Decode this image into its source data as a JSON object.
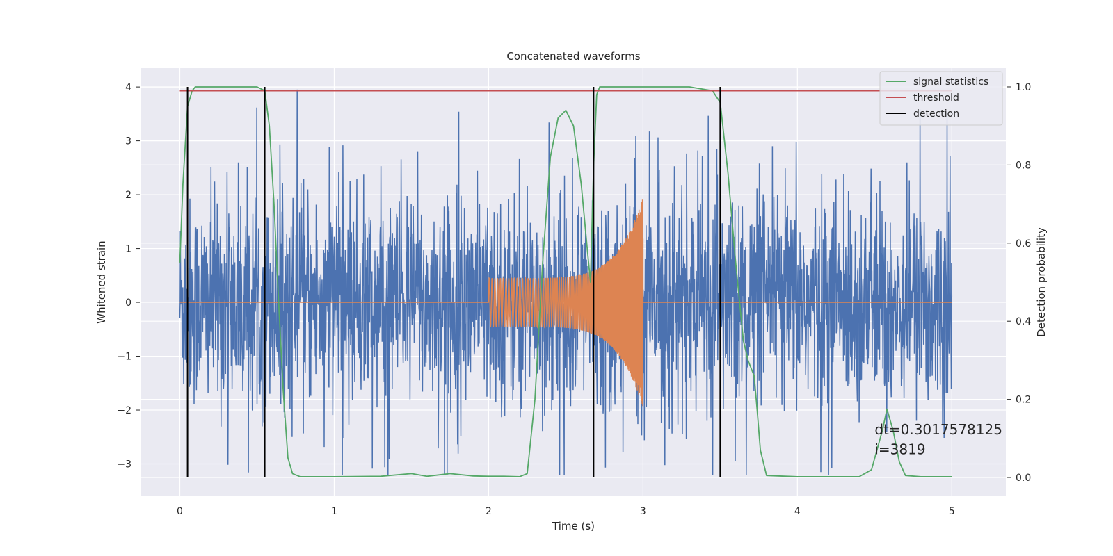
{
  "chart_data": {
    "type": "line",
    "title": "Concatenated waveforms",
    "xlabel": "Time (s)",
    "ylabel": "Whitened strain",
    "y2label": "Detection probability",
    "xlim": [
      -0.25,
      5.35
    ],
    "ylim": [
      -3.6,
      4.35
    ],
    "y2lim": [
      -0.048,
      1.048
    ],
    "xticks": [
      0,
      1,
      2,
      3,
      4,
      5
    ],
    "yticks": [
      -3,
      -2,
      -1,
      0,
      1,
      2,
      3,
      4
    ],
    "y2ticks": [
      0.0,
      0.2,
      0.4,
      0.6,
      0.8,
      1.0
    ],
    "y2tick_labels": [
      "0.0",
      "0.2",
      "0.4",
      "0.6",
      "0.8",
      "1.0"
    ],
    "grid": true,
    "legend_position": "top-right",
    "series": [
      {
        "name": "",
        "axis": "left",
        "color": "#4c72b0",
        "kind": "noise",
        "x_range": [
          0,
          5
        ],
        "amplitude_typical": 1.0,
        "amplitude_peak": 4.0
      },
      {
        "name": "",
        "axis": "left",
        "color": "#dd8452",
        "kind": "chirp",
        "x_range": [
          0,
          5
        ],
        "chirp_start": 2.0,
        "chirp_end": 3.0,
        "amplitude_start": 0.45,
        "amplitude_end": 1.95
      },
      {
        "name": "signal statistics",
        "axis": "right",
        "color": "#55a868",
        "x": [
          0.0,
          0.02,
          0.05,
          0.08,
          0.1,
          0.5,
          0.55,
          0.58,
          0.61,
          0.64,
          0.67,
          0.7,
          0.73,
          0.78,
          1.0,
          1.3,
          1.5,
          1.6,
          1.75,
          1.9,
          2.0,
          2.1,
          2.2,
          2.25,
          2.3,
          2.35,
          2.4,
          2.45,
          2.5,
          2.55,
          2.6,
          2.64,
          2.66,
          2.68,
          2.7,
          2.72,
          2.75,
          3.3,
          3.45,
          3.5,
          3.55,
          3.6,
          3.65,
          3.68,
          3.72,
          3.74,
          3.76,
          3.8,
          4.0,
          4.4,
          4.48,
          4.55,
          4.58,
          4.62,
          4.66,
          4.7,
          4.8,
          5.0
        ],
        "values": [
          0.55,
          0.75,
          0.95,
          0.99,
          1.0,
          1.0,
          0.99,
          0.9,
          0.7,
          0.45,
          0.22,
          0.05,
          0.01,
          0.002,
          0.002,
          0.003,
          0.01,
          0.003,
          0.01,
          0.004,
          0.003,
          0.003,
          0.002,
          0.01,
          0.2,
          0.55,
          0.82,
          0.92,
          0.94,
          0.9,
          0.75,
          0.58,
          0.5,
          0.8,
          0.98,
          1.0,
          1.0,
          1.0,
          0.99,
          0.96,
          0.78,
          0.55,
          0.35,
          0.3,
          0.26,
          0.17,
          0.07,
          0.005,
          0.002,
          0.002,
          0.02,
          0.12,
          0.175,
          0.12,
          0.04,
          0.005,
          0.002,
          0.002
        ]
      },
      {
        "name": "threshold",
        "axis": "right",
        "color": "#c44e52",
        "x": [
          0,
          5
        ],
        "values": [
          0.99,
          0.99
        ]
      },
      {
        "name": "detection",
        "axis": "right",
        "color": "#000000",
        "kind": "vlines",
        "x": [
          0.05,
          0.55,
          2.68,
          3.5
        ],
        "y_range": [
          0.0,
          1.0
        ]
      }
    ],
    "annotations": [
      {
        "text": "dt=0.3017578125",
        "x": 4.5,
        "y2": 0.11
      },
      {
        "text": " i=3819",
        "x": 4.5,
        "y2": 0.06
      }
    ]
  }
}
